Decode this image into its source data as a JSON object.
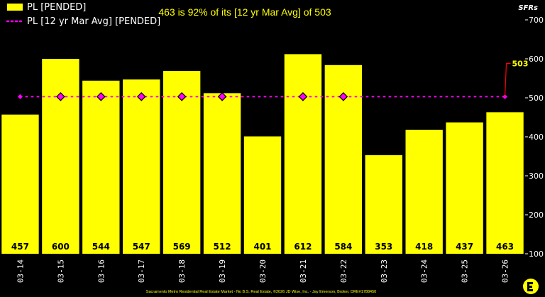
{
  "chart_data": {
    "type": "bar",
    "title": "463 is 92% of its [12 yr Mar Avg] of 503",
    "ylabel": "SFRs",
    "ylim": [
      100,
      700
    ],
    "yticks": [
      100,
      200,
      300,
      400,
      500,
      600,
      700
    ],
    "categories": [
      "03-14",
      "03-15",
      "03-16",
      "03-17",
      "03-18",
      "03-19",
      "03-20",
      "03-21",
      "03-22",
      "03-23",
      "03-24",
      "03-25",
      "03-26"
    ],
    "series": [
      {
        "name": "PL [PENDED]",
        "type": "bar",
        "color": "#ffff00",
        "values": [
          457,
          600,
          544,
          547,
          569,
          512,
          401,
          612,
          584,
          353,
          418,
          437,
          463
        ]
      },
      {
        "name": "PL [12 yr Mar Avg] [PENDED]",
        "type": "line",
        "color": "#ff00ff",
        "value": 503,
        "marker_categories": [
          "03-15",
          "03-16",
          "03-17",
          "03-18",
          "03-19",
          "03-21",
          "03-22"
        ]
      }
    ],
    "avg_callout": "503",
    "legend_position": "top-left",
    "grid": false
  },
  "footer": {
    "text": "Sacramento Metro Residential Real Estate Market - No B.S. Real Estate, ©2026 JD Wise, Inc. - Jay Emerson, Broker, DRE#1788450"
  }
}
